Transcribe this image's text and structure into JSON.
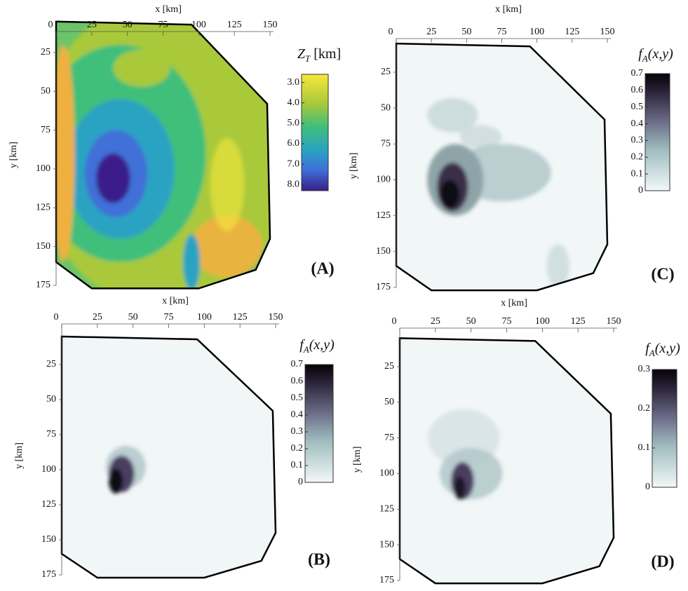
{
  "chart_data": [
    {
      "type": "heatmap",
      "panel": "(A)",
      "xlabel": "x [km]",
      "ylabel": "y [km]",
      "xlim": [
        0,
        150
      ],
      "ylim": [
        0,
        175
      ],
      "xticks": [
        0,
        25,
        50,
        75,
        100,
        125,
        150
      ],
      "yticks": [
        25,
        50,
        75,
        100,
        125,
        150,
        175
      ],
      "colorbar": {
        "symbol": "Z",
        "subscript": "T",
        "text": "[km]",
        "lim": [
          2.6,
          8.3
        ],
        "ticks": [
          {
            "value": 3,
            "label": "3.0"
          },
          {
            "value": 4,
            "label": "4.0"
          },
          {
            "value": 5,
            "label": "5.0"
          },
          {
            "value": 6,
            "label": "6.0"
          },
          {
            "value": 7,
            "label": "7.0"
          },
          {
            "value": 8,
            "label": "8.0"
          }
        ]
      }
    },
    {
      "type": "heatmap",
      "panel": "(C)",
      "xlabel": "x [km]",
      "ylabel": "y [km]",
      "xlim": [
        0,
        150
      ],
      "ylim": [
        0,
        175
      ],
      "xticks": [
        0,
        25,
        50,
        75,
        100,
        125,
        150
      ],
      "yticks": [
        25,
        50,
        75,
        100,
        125,
        150,
        175
      ],
      "colorbar": {
        "symbol": "f",
        "subscript": "A",
        "text": "(x,y)",
        "lim": [
          0,
          0.7
        ],
        "ticks": [
          0,
          0.1,
          0.2,
          0.3,
          0.4,
          0.5,
          0.6,
          0.7
        ]
      }
    },
    {
      "type": "heatmap",
      "panel": "(B)",
      "xlabel": "x [km]",
      "ylabel": "y [km]",
      "xlim": [
        0,
        150
      ],
      "ylim": [
        0,
        175
      ],
      "xticks": [
        0,
        25,
        50,
        75,
        100,
        125,
        150
      ],
      "yticks": [
        25,
        50,
        75,
        100,
        125,
        150,
        175
      ],
      "colorbar": {
        "symbol": "f",
        "subscript": "A",
        "text": "(x,y)",
        "lim": [
          0,
          0.7
        ],
        "ticks": [
          0,
          0.1,
          0.2,
          0.3,
          0.4,
          0.5,
          0.6,
          0.7
        ]
      }
    },
    {
      "type": "heatmap",
      "panel": "(D)",
      "xlabel": "x [km]",
      "ylabel": "y [km]",
      "xlim": [
        0,
        150
      ],
      "ylim": [
        0,
        175
      ],
      "xticks": [
        0,
        25,
        50,
        75,
        100,
        125,
        150
      ],
      "yticks": [
        25,
        50,
        75,
        100,
        125,
        150,
        175
      ],
      "colorbar": {
        "symbol": "f",
        "subscript": "A",
        "text": "(x,y)",
        "lim": [
          0,
          0.3
        ],
        "ticks": [
          0,
          0.1,
          0.2,
          0.3
        ]
      }
    }
  ]
}
